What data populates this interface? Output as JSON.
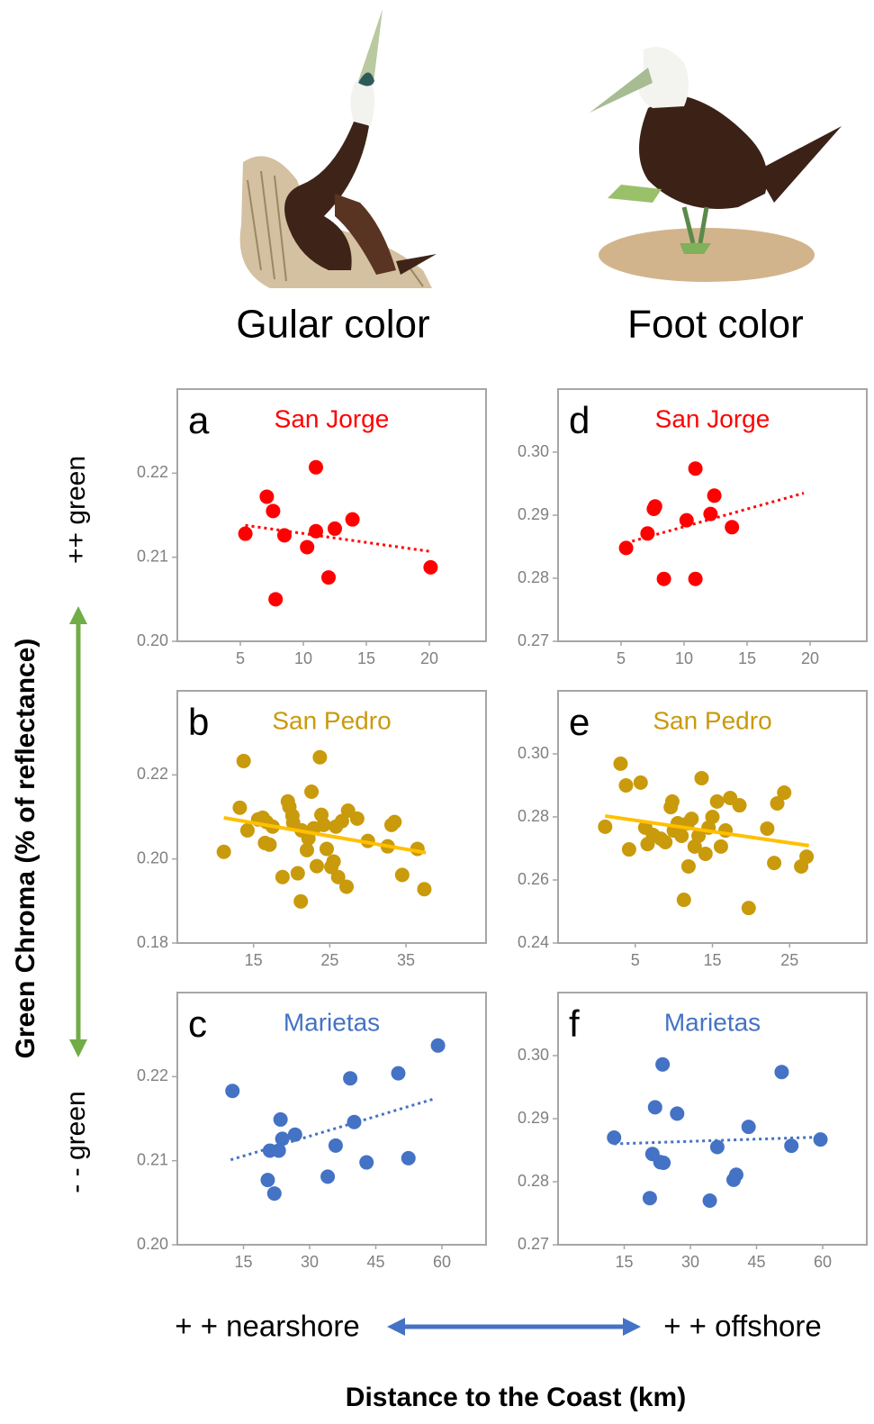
{
  "figure": {
    "gular_title": "Gular color",
    "foot_title": "Foot color",
    "y_axis_label": "Green Chroma (% of reflectance)",
    "more_green": "++  green",
    "less_green": "- -  green",
    "x_axis_label": "Distance to the Coast (km)",
    "nearshore": "+ + nearshore",
    "offshore": "+ + offshore"
  },
  "chart_data": [
    {
      "type": "scatter",
      "panel_label": "a",
      "title": "San Jorge",
      "color": "#ff0000",
      "x": [
        5.4,
        7.1,
        7.6,
        7.8,
        8.5,
        10.3,
        11.0,
        11.0,
        12.0,
        12.5,
        13.9,
        20.1
      ],
      "values": [
        0.2128,
        0.2172,
        0.2155,
        0.205,
        0.2126,
        0.2112,
        0.2207,
        0.2131,
        0.2076,
        0.2134,
        0.2145,
        0.2088
      ],
      "trend": {
        "x": [
          5.4,
          20
        ],
        "values": [
          0.2138,
          0.2107
        ],
        "style": "dotted",
        "color": "#ff0000"
      },
      "xlim": [
        0,
        24.5
      ],
      "xticks": [
        5,
        10,
        15,
        20
      ],
      "ylim": [
        0.2,
        0.23
      ],
      "yticks": [
        {
          "value": 0.2,
          "label": "0.20"
        },
        0.21,
        0.22
      ]
    },
    {
      "type": "scatter",
      "panel_label": "b",
      "title": "San Pedro",
      "color": "#c99a0b",
      "x": [
        11.1,
        13.7,
        13.2,
        14.2,
        15.6,
        16.2,
        16.7,
        16.5,
        17.1,
        17.5,
        18.8,
        19.5,
        19.7,
        20.1,
        20.2,
        20.8,
        21.2,
        21.3,
        22.0,
        22.2,
        22.6,
        22.9,
        23.3,
        23.7,
        23.9,
        24.2,
        24.6,
        25.2,
        25.5,
        25.8,
        26.1,
        26.6,
        27.2,
        27.4,
        28.6,
        30.0,
        33.1,
        33.5,
        32.6,
        34.5,
        36.5,
        37.4
      ],
      "values": [
        0.2017,
        0.2233,
        0.2122,
        0.2068,
        0.2094,
        0.2098,
        0.2088,
        0.2038,
        0.2034,
        0.2077,
        0.1957,
        0.2137,
        0.2124,
        0.2103,
        0.2086,
        0.1966,
        0.1899,
        0.2068,
        0.2021,
        0.2049,
        0.216,
        0.2073,
        0.1983,
        0.2242,
        0.2105,
        0.2081,
        0.2024,
        0.1981,
        0.1994,
        0.2077,
        0.1957,
        0.209,
        0.1934,
        0.2115,
        0.2096,
        0.2043,
        0.2081,
        0.2088,
        0.203,
        0.1962,
        0.2024,
        0.1928
      ],
      "trend": {
        "x": [
          11.1,
          37.6
        ],
        "values": [
          0.2098,
          0.2015
        ],
        "style": "solid",
        "color": "#ffc000"
      },
      "xlim": [
        5,
        45.5
      ],
      "xticks": [
        15,
        25,
        35
      ],
      "ylim": [
        0.18,
        0.24
      ],
      "yticks": [
        0.18,
        {
          "value": 0.2,
          "label": "0.20"
        },
        0.22
      ]
    },
    {
      "type": "scatter",
      "panel_label": "c",
      "title": "Marietas",
      "color": "#4472c4",
      "x": [
        12.5,
        20.5,
        21.0,
        22.0,
        23.0,
        23.4,
        23.8,
        26.7,
        34.1,
        35.9,
        39.2,
        40.1,
        42.9,
        50.1,
        52.4,
        59.1
      ],
      "values": [
        0.2183,
        0.2077,
        0.2112,
        0.2061,
        0.2112,
        0.2149,
        0.2126,
        0.2131,
        0.2081,
        0.2118,
        0.2198,
        0.2146,
        0.2098,
        0.2204,
        0.2103,
        0.2237
      ],
      "trend": {
        "x": [
          12.1,
          58.5
        ],
        "values": [
          0.2101,
          0.2174
        ],
        "style": "dotted",
        "color": "#4472c4"
      },
      "xlim": [
        0,
        70
      ],
      "xticks": [
        15,
        30,
        45,
        60
      ],
      "ylim": [
        0.2,
        0.23
      ],
      "yticks": [
        {
          "value": 0.2,
          "label": "0.20"
        },
        0.21,
        0.22
      ]
    },
    {
      "type": "scatter",
      "panel_label": "d",
      "title": "San Jorge",
      "color": "#ff0000",
      "x": [
        5.4,
        7.1,
        7.6,
        7.7,
        8.4,
        10.2,
        10.9,
        10.9,
        12.1,
        12.4,
        13.8
      ],
      "values": [
        0.2848,
        0.2871,
        0.291,
        0.2914,
        0.2799,
        0.2892,
        0.2974,
        0.2799,
        0.2902,
        0.2931,
        0.2881
      ],
      "trend": {
        "x": [
          5.4,
          19.5
        ],
        "values": [
          0.2856,
          0.2935
        ],
        "style": "dotted",
        "color": "#ff0000"
      },
      "xlim": [
        0,
        24.5
      ],
      "xticks": [
        5,
        10,
        15,
        20
      ],
      "ylim": [
        0.27,
        0.31
      ],
      "yticks": [
        0.27,
        0.28,
        0.29,
        {
          "value": 0.3,
          "label": "0.30"
        }
      ]
    },
    {
      "type": "scatter",
      "panel_label": "e",
      "title": "San Pedro",
      "color": "#c99a0b",
      "x": [
        1.1,
        3.1,
        3.8,
        4.2,
        5.7,
        6.3,
        6.6,
        7.3,
        8.3,
        8.9,
        9.6,
        9.8,
        10.0,
        10.5,
        11.0,
        11.3,
        11.8,
        11.9,
        12.3,
        12.7,
        13.2,
        13.6,
        14.1,
        14.5,
        15.0,
        15.6,
        16.1,
        16.7,
        17.3,
        18.5,
        19.7,
        22.1,
        23.0,
        23.4,
        24.3,
        26.5,
        27.2
      ],
      "values": [
        0.2769,
        0.2969,
        0.29,
        0.2697,
        0.2909,
        0.2766,
        0.2714,
        0.2743,
        0.2731,
        0.272,
        0.2831,
        0.2849,
        0.2757,
        0.278,
        0.274,
        0.2537,
        0.278,
        0.2643,
        0.2794,
        0.2706,
        0.274,
        0.2923,
        0.2683,
        0.2766,
        0.28,
        0.2849,
        0.2706,
        0.2757,
        0.286,
        0.2837,
        0.2511,
        0.2763,
        0.2654,
        0.2843,
        0.2877,
        0.2643,
        0.2674
      ],
      "trend": {
        "x": [
          1.1,
          27.5
        ],
        "values": [
          0.2803,
          0.2709
        ],
        "style": "solid",
        "color": "#ffc000"
      },
      "xlim": [
        -5,
        35
      ],
      "xticks": [
        5,
        15,
        25
      ],
      "ylim": [
        0.24,
        0.32
      ],
      "yticks": [
        0.24,
        0.26,
        0.28,
        {
          "value": 0.3,
          "label": "0.30"
        }
      ]
    },
    {
      "type": "scatter",
      "panel_label": "f",
      "title": "Marietas",
      "color": "#4472c4",
      "x": [
        12.7,
        20.8,
        21.4,
        22.0,
        23.2,
        23.7,
        23.9,
        27.0,
        34.4,
        36.1,
        39.8,
        40.4,
        43.2,
        50.7,
        52.9,
        59.5
      ],
      "values": [
        0.287,
        0.2774,
        0.2844,
        0.2918,
        0.2831,
        0.2986,
        0.283,
        0.2908,
        0.277,
        0.2855,
        0.2803,
        0.2811,
        0.2887,
        0.2974,
        0.2857,
        0.2867
      ],
      "trend": {
        "x": [
          12.7,
          60.2
        ],
        "values": [
          0.286,
          0.2871
        ],
        "style": "dotted",
        "color": "#4472c4"
      },
      "xlim": [
        0,
        70
      ],
      "xticks": [
        15,
        30,
        45,
        60
      ],
      "ylim": [
        0.27,
        0.31
      ],
      "yticks": [
        0.27,
        0.28,
        0.29,
        {
          "value": 0.3,
          "label": "0.30"
        }
      ]
    }
  ]
}
